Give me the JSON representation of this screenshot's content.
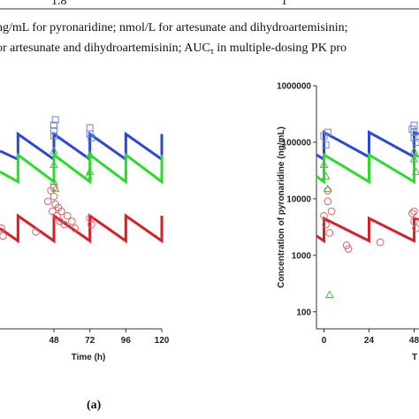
{
  "header": {
    "cells": [
      "1.8",
      "1"
    ],
    "line1": "ng/mL for pyronaridine; nmol/L for artesunate and dihydroartemisinin;",
    "line2_a": "or artesunate and dihydroartemisinin; AUC",
    "line2_sub": "τ",
    "line2_b": " in multiple-dosing PK pro"
  },
  "panel_label": "(a)",
  "chart_data": [
    {
      "type": "line",
      "xlabel": "Time (h)",
      "xlim": [
        12,
        120
      ],
      "xticks": [
        48,
        72,
        96,
        120
      ],
      "ylim": [
        50,
        1000000
      ],
      "log": true,
      "series": [
        {
          "name": "blue",
          "mode": "lines",
          "color": "#2b47d6",
          "x": [
            12,
            24,
            24,
            48,
            48,
            72,
            72,
            96,
            96,
            120,
            120
          ],
          "values": [
            70000,
            50000,
            140000,
            50000,
            140000,
            50000,
            140000,
            50000,
            140000,
            50000,
            140000
          ]
        },
        {
          "name": "green",
          "mode": "lines",
          "color": "#2bdc2b",
          "x": [
            12,
            24,
            24,
            48,
            48,
            72,
            72,
            96,
            96,
            120,
            120
          ],
          "values": [
            30000,
            20000,
            60000,
            20000,
            60000,
            20000,
            60000,
            20000,
            60000,
            20000,
            60000
          ]
        },
        {
          "name": "red",
          "mode": "lines",
          "color": "#d61f26",
          "x": [
            12,
            24,
            24,
            48,
            48,
            72,
            72,
            96,
            96,
            120,
            120
          ],
          "values": [
            3000,
            1800,
            5000,
            1800,
            5000,
            1800,
            5000,
            1800,
            5000,
            1800,
            5000
          ]
        },
        {
          "name": "blue-obs",
          "mode": "markers",
          "marker": "square",
          "color": "#6a86d8",
          "x": [
            48,
            48,
            48,
            49,
            72,
            72,
            73
          ],
          "values": [
            200000,
            160000,
            130000,
            250000,
            180000,
            140000,
            120000
          ]
        },
        {
          "name": "green-obs",
          "mode": "markers",
          "marker": "triangle",
          "color": "#44c044",
          "x": [
            48,
            48,
            48,
            49,
            72,
            72,
            71
          ],
          "values": [
            70000,
            40000,
            20000,
            15000,
            60000,
            30000,
            25000
          ]
        },
        {
          "name": "red-obs",
          "mode": "markers",
          "marker": "circle",
          "color": "#d9606a",
          "x": [
            13,
            14,
            36,
            44,
            46,
            47,
            48,
            48,
            49,
            50,
            51,
            52,
            53,
            55,
            57,
            60,
            62,
            72,
            73
          ],
          "values": [
            3000,
            2200,
            2600,
            9000,
            14000,
            6000,
            16000,
            11000,
            8000,
            5000,
            7000,
            4000,
            6000,
            3500,
            5000,
            4000,
            3000,
            4500,
            3500
          ]
        }
      ]
    },
    {
      "type": "line",
      "xlabel": "T",
      "ylabel": "Concentration of pyronaridine (ng/mL)",
      "xlim": [
        -4,
        50.5
      ],
      "xticks": [
        0,
        24,
        48
      ],
      "ylim": [
        50,
        1000000
      ],
      "yticks": [
        100,
        1000,
        10000,
        100000,
        1000000
      ],
      "log": true,
      "series": [
        {
          "name": "blue",
          "mode": "lines",
          "color": "#2b47d6",
          "x": [
            -4,
            0,
            0,
            24,
            24,
            48,
            48,
            50.5
          ],
          "values": [
            60000,
            50000,
            150000,
            55000,
            150000,
            55000,
            150000,
            140000
          ]
        },
        {
          "name": "green",
          "mode": "lines",
          "color": "#2bdc2b",
          "x": [
            -4,
            0,
            0,
            24,
            24,
            48,
            48,
            50.5
          ],
          "values": [
            25000,
            20000,
            60000,
            20000,
            60000,
            20000,
            60000,
            56000
          ]
        },
        {
          "name": "red",
          "mode": "lines",
          "color": "#d61f26",
          "x": [
            -4,
            0,
            0,
            24,
            24,
            48,
            48,
            50.5
          ],
          "values": [
            2200,
            1800,
            4500,
            1800,
            4500,
            1800,
            4500,
            4300
          ]
        },
        {
          "name": "blue-obs",
          "mode": "markers",
          "marker": "square",
          "color": "#6a86d8",
          "x": [
            0,
            1,
            2,
            48,
            48,
            48,
            49,
            47
          ],
          "values": [
            130000,
            90000,
            150000,
            200000,
            150000,
            120000,
            100000,
            170000
          ]
        },
        {
          "name": "green-obs",
          "mode": "markers",
          "marker": "triangle",
          "color": "#44c044",
          "x": [
            0,
            1,
            2,
            3,
            48,
            48,
            49
          ],
          "values": [
            40000,
            25000,
            15000,
            200,
            70000,
            50000,
            30000
          ]
        },
        {
          "name": "red-obs",
          "mode": "markers",
          "marker": "circle",
          "color": "#d9606a",
          "x": [
            0,
            1,
            2,
            2,
            3,
            4,
            12,
            13,
            30,
            48,
            48,
            49,
            47
          ],
          "values": [
            5000,
            3500,
            14000,
            9000,
            2500,
            6000,
            1500,
            1300,
            1700,
            6000,
            4000,
            3000,
            5500
          ]
        }
      ]
    }
  ]
}
